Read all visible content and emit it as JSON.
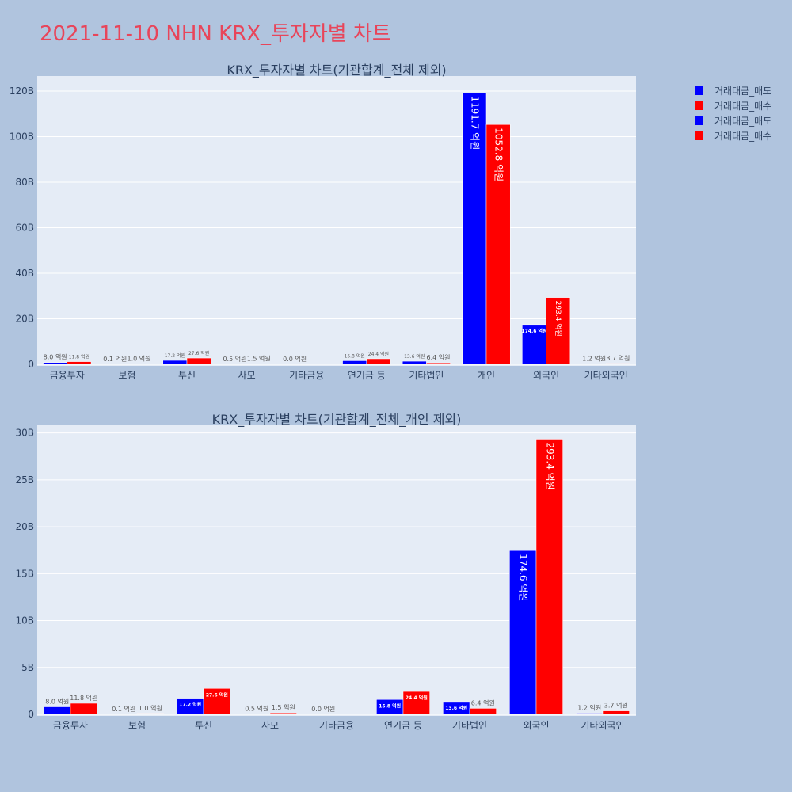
{
  "page_title": "2021-11-10 NHN KRX_투자자별 차트",
  "colors": {
    "sell": "#0000ff",
    "buy": "#ff0000",
    "plot_bg": "#e5ecf6",
    "page_bg": "#b0c4de",
    "title": "#e8455a"
  },
  "legend": [
    {
      "name": "거래대금_매도",
      "color": "#0000ff"
    },
    {
      "name": "거래대금_매수",
      "color": "#ff0000"
    },
    {
      "name": "거래대금_매도",
      "color": "#0000ff"
    },
    {
      "name": "거래대금_매수",
      "color": "#ff0000"
    }
  ],
  "chart_data": [
    {
      "type": "bar",
      "title": "KRX_투자자별 차트(기관합계_전체 제외)",
      "categories": [
        "금융투자",
        "보험",
        "투신",
        "사모",
        "기타금융",
        "연기금 등",
        "기타법인",
        "개인",
        "외국인",
        "기타외국인"
      ],
      "series": [
        {
          "name": "거래대금_매도",
          "color": "#0000ff",
          "values": [
            0.8,
            0.01,
            1.72,
            0.05,
            0.0,
            1.58,
            1.36,
            119.17,
            17.46,
            0.12
          ],
          "labels": [
            "8.0 억원",
            "0.1 억원",
            "17.2 억원",
            "0.5 억원",
            "0.0 억원",
            "15.8 억원",
            "13.6 억원",
            "1191.7 억원",
            "174.6 억원",
            "1.2 억원"
          ]
        },
        {
          "name": "거래대금_매수",
          "color": "#ff0000",
          "values": [
            1.18,
            0.1,
            2.76,
            0.15,
            0.0,
            2.44,
            0.64,
            105.28,
            29.34,
            0.37
          ],
          "labels": [
            "11.8 억원",
            "1.0 억원",
            "27.6 억원",
            "1.5 억원",
            "",
            "24.4 억원",
            "6.4 억원",
            "1052.8 억원",
            "293.4 억원",
            "3.7 억원"
          ]
        }
      ],
      "yticks": [
        0,
        20,
        40,
        60,
        80,
        100,
        120
      ],
      "ytick_labels": [
        "0",
        "20B",
        "40B",
        "60B",
        "80B",
        "100B",
        "120B"
      ],
      "ylim": [
        0,
        126.6
      ],
      "grid": true
    },
    {
      "type": "bar",
      "title": "KRX_투자자별 차트(기관합계_전체_개인 제외)",
      "categories": [
        "금융투자",
        "보험",
        "투신",
        "사모",
        "기타금융",
        "연기금 등",
        "기타법인",
        "외국인",
        "기타외국인"
      ],
      "series": [
        {
          "name": "거래대금_매도",
          "color": "#0000ff",
          "values": [
            0.8,
            0.01,
            1.72,
            0.05,
            0.0,
            1.58,
            1.36,
            17.46,
            0.12
          ],
          "labels": [
            "8.0 억원",
            "0.1 억원",
            "17.2 억원",
            "0.5 억원",
            "0.0 억원",
            "15.8 억원",
            "13.6 억원",
            "174.6 억원",
            "1.2 억원"
          ]
        },
        {
          "name": "거래대금_매수",
          "color": "#ff0000",
          "values": [
            1.18,
            0.1,
            2.76,
            0.15,
            0.0,
            2.44,
            0.64,
            29.34,
            0.37
          ],
          "labels": [
            "11.8 억원",
            "1.0 억원",
            "27.6 억원",
            "1.5 억원",
            "",
            "24.4 억원",
            "6.4 억원",
            "293.4 억원",
            "3.7 억원"
          ]
        }
      ],
      "yticks": [
        0,
        5,
        10,
        15,
        20,
        25,
        30
      ],
      "ytick_labels": [
        "0",
        "5B",
        "10B",
        "15B",
        "20B",
        "25B",
        "30B"
      ],
      "ylim": [
        0,
        30.9
      ],
      "grid": true
    }
  ]
}
